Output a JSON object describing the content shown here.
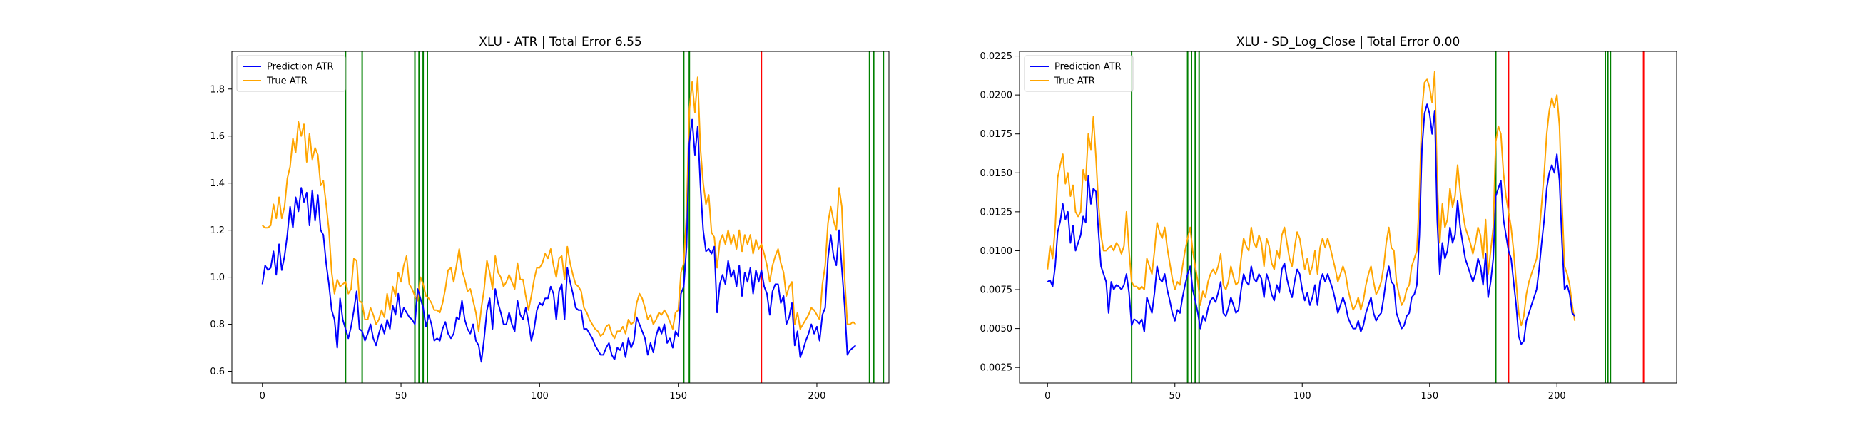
{
  "chart_data": [
    {
      "type": "line",
      "title": "XLU - ATR | Total Error 6.55",
      "xlabel": "",
      "ylabel": "",
      "xlim": [
        -11,
        226
      ],
      "ylim": [
        0.55,
        1.96
      ],
      "xticks": [
        0,
        50,
        100,
        150,
        200
      ],
      "yticks": [
        0.6,
        0.8,
        1.0,
        1.2,
        1.4,
        1.6,
        1.8
      ],
      "ytick_format": 1,
      "grid": false,
      "legend_position": "upper left",
      "series": [
        {
          "name": "Prediction ATR",
          "color": "#0000ff",
          "x_start": 0,
          "values": [
            0.97,
            1.05,
            1.03,
            1.04,
            1.11,
            1.01,
            1.14,
            1.03,
            1.09,
            1.18,
            1.3,
            1.21,
            1.34,
            1.28,
            1.38,
            1.32,
            1.36,
            1.22,
            1.37,
            1.24,
            1.35,
            1.2,
            1.18,
            1.06,
            0.97,
            0.86,
            0.82,
            0.7,
            0.91,
            0.82,
            0.78,
            0.74,
            0.79,
            0.86,
            0.94,
            0.78,
            0.77,
            0.73,
            0.76,
            0.8,
            0.74,
            0.71,
            0.76,
            0.8,
            0.76,
            0.82,
            0.78,
            0.88,
            0.84,
            0.93,
            0.83,
            0.87,
            0.85,
            0.83,
            0.82,
            0.8,
            0.95,
            0.91,
            0.87,
            0.79,
            0.84,
            0.8,
            0.73,
            0.74,
            0.73,
            0.78,
            0.81,
            0.76,
            0.74,
            0.76,
            0.83,
            0.82,
            0.9,
            0.82,
            0.78,
            0.76,
            0.8,
            0.73,
            0.71,
            0.64,
            0.74,
            0.86,
            0.91,
            0.78,
            0.95,
            0.89,
            0.85,
            0.8,
            0.8,
            0.85,
            0.8,
            0.77,
            0.9,
            0.84,
            0.82,
            0.87,
            0.81,
            0.73,
            0.78,
            0.86,
            0.89,
            0.88,
            0.91,
            0.91,
            0.96,
            0.93,
            0.82,
            0.94,
            0.97,
            0.82,
            1.04,
            0.98,
            0.93,
            0.87,
            0.86,
            0.86,
            0.78,
            0.78,
            0.76,
            0.74,
            0.71,
            0.69,
            0.67,
            0.67,
            0.7,
            0.72,
            0.67,
            0.65,
            0.7,
            0.69,
            0.72,
            0.66,
            0.74,
            0.7,
            0.73,
            0.83,
            0.8,
            0.77,
            0.74,
            0.67,
            0.72,
            0.68,
            0.75,
            0.79,
            0.76,
            0.8,
            0.72,
            0.74,
            0.7,
            0.77,
            0.75,
            0.93,
            0.96,
            1.13,
            1.57,
            1.67,
            1.52,
            1.64,
            1.39,
            1.2,
            1.11,
            1.12,
            1.1,
            1.13,
            0.85,
            0.97,
            1.01,
            0.97,
            1.07,
            1.0,
            1.03,
            0.96,
            1.05,
            0.92,
            1.02,
            0.98,
            1.04,
            0.93,
            1.03,
            0.98,
            1.03,
            0.96,
            0.93,
            0.84,
            0.94,
            0.97,
            0.97,
            0.89,
            0.92,
            0.8,
            0.83,
            0.89,
            0.71,
            0.77,
            0.66,
            0.69,
            0.73,
            0.76,
            0.8,
            0.76,
            0.79,
            0.73,
            0.84,
            0.87,
            1.08,
            1.18,
            1.09,
            1.05,
            1.2,
            1.04,
            0.88,
            0.67,
            0.69,
            0.7,
            0.71
          ]
        },
        {
          "name": "True ATR",
          "color": "#ffa500",
          "x_start": 0,
          "values": [
            1.22,
            1.21,
            1.21,
            1.22,
            1.31,
            1.25,
            1.34,
            1.25,
            1.3,
            1.42,
            1.47,
            1.59,
            1.53,
            1.66,
            1.6,
            1.65,
            1.49,
            1.61,
            1.5,
            1.55,
            1.52,
            1.39,
            1.41,
            1.31,
            1.2,
            1.02,
            0.93,
            0.99,
            0.96,
            0.97,
            0.98,
            0.93,
            0.95,
            1.08,
            1.07,
            0.9,
            0.89,
            0.82,
            0.82,
            0.87,
            0.84,
            0.8,
            0.82,
            0.86,
            0.83,
            0.93,
            0.86,
            0.96,
            0.92,
            1.02,
            0.98,
            1.05,
            1.09,
            0.97,
            0.95,
            0.92,
            0.9,
            1.0,
            0.97,
            0.92,
            0.91,
            0.89,
            0.86,
            0.86,
            0.85,
            0.89,
            0.95,
            1.03,
            1.04,
            0.98,
            1.05,
            1.12,
            1.03,
            0.99,
            0.94,
            0.95,
            0.9,
            0.85,
            0.77,
            0.87,
            0.95,
            1.07,
            1.02,
            0.95,
            1.09,
            1.02,
            1.0,
            0.96,
            0.98,
            1.01,
            0.98,
            0.95,
            1.06,
            0.99,
            0.99,
            0.92,
            0.86,
            0.92,
            0.99,
            1.04,
            1.04,
            1.06,
            1.1,
            1.08,
            1.12,
            1.05,
            1.0,
            1.08,
            1.09,
            0.99,
            1.13,
            1.06,
            1.01,
            0.97,
            0.96,
            0.94,
            0.87,
            0.85,
            0.82,
            0.8,
            0.78,
            0.77,
            0.75,
            0.76,
            0.79,
            0.8,
            0.76,
            0.74,
            0.77,
            0.77,
            0.79,
            0.76,
            0.82,
            0.8,
            0.81,
            0.89,
            0.93,
            0.91,
            0.87,
            0.82,
            0.84,
            0.8,
            0.82,
            0.85,
            0.84,
            0.86,
            0.84,
            0.81,
            0.78,
            0.85,
            0.86,
            1.02,
            1.06,
            1.27,
            1.71,
            1.83,
            1.7,
            1.85,
            1.55,
            1.4,
            1.31,
            1.35,
            1.19,
            1.17,
            1.04,
            1.15,
            1.18,
            1.14,
            1.2,
            1.14,
            1.18,
            1.12,
            1.2,
            1.11,
            1.18,
            1.14,
            1.18,
            1.1,
            1.16,
            1.12,
            1.14,
            1.1,
            1.05,
            0.98,
            1.05,
            1.09,
            1.12,
            1.06,
            1.02,
            0.92,
            0.96,
            0.98,
            0.8,
            0.85,
            0.78,
            0.8,
            0.82,
            0.84,
            0.87,
            0.86,
            0.84,
            0.82,
            0.97,
            1.05,
            1.23,
            1.3,
            1.24,
            1.2,
            1.38,
            1.3,
            1.0,
            0.8,
            0.8,
            0.81,
            0.8
          ]
        }
      ],
      "vlines": [
        {
          "x": 30,
          "color": "#008000"
        },
        {
          "x": 36,
          "color": "#008000"
        },
        {
          "x": 55,
          "color": "#008000"
        },
        {
          "x": 56.5,
          "color": "#008000"
        },
        {
          "x": 58,
          "color": "#008000"
        },
        {
          "x": 59.5,
          "color": "#008000"
        },
        {
          "x": 152,
          "color": "#008000"
        },
        {
          "x": 154,
          "color": "#008000"
        },
        {
          "x": 180,
          "color": "#ff0000"
        },
        {
          "x": 219,
          "color": "#008000"
        },
        {
          "x": 220.5,
          "color": "#008000"
        },
        {
          "x": 224,
          "color": "#008000"
        }
      ]
    },
    {
      "type": "line",
      "title": "XLU - SD_Log_Close | Total Error 0.00",
      "xlabel": "",
      "ylabel": "",
      "xlim": [
        -11,
        247
      ],
      "ylim": [
        0.0015,
        0.0228
      ],
      "xticks": [
        0,
        50,
        100,
        150,
        200
      ],
      "yticks": [
        0.0025,
        0.005,
        0.0075,
        0.01,
        0.0125,
        0.015,
        0.0175,
        0.02,
        0.0225
      ],
      "ytick_format": 4,
      "grid": false,
      "legend_position": "upper left",
      "series": [
        {
          "name": "Prediction ATR",
          "color": "#0000ff",
          "x_start": 0,
          "values": [
            0.008,
            0.0081,
            0.0077,
            0.009,
            0.0112,
            0.0119,
            0.013,
            0.012,
            0.0125,
            0.0105,
            0.0116,
            0.01,
            0.0105,
            0.011,
            0.0122,
            0.0118,
            0.0148,
            0.013,
            0.014,
            0.0138,
            0.0112,
            0.009,
            0.0085,
            0.008,
            0.006,
            0.008,
            0.0075,
            0.0078,
            0.0077,
            0.0075,
            0.0078,
            0.0085,
            0.0073,
            0.0052,
            0.0056,
            0.0055,
            0.0053,
            0.0056,
            0.0048,
            0.007,
            0.0065,
            0.006,
            0.0073,
            0.009,
            0.0082,
            0.008,
            0.0085,
            0.0075,
            0.0068,
            0.006,
            0.0055,
            0.0062,
            0.006,
            0.007,
            0.0078,
            0.0085,
            0.009,
            0.0075,
            0.0068,
            0.006,
            0.005,
            0.0058,
            0.0055,
            0.0063,
            0.0068,
            0.007,
            0.0067,
            0.0073,
            0.008,
            0.006,
            0.0058,
            0.0063,
            0.007,
            0.0065,
            0.006,
            0.0062,
            0.0075,
            0.0085,
            0.008,
            0.0078,
            0.009,
            0.0082,
            0.008,
            0.0085,
            0.0082,
            0.007,
            0.0085,
            0.008,
            0.0072,
            0.0068,
            0.0078,
            0.0073,
            0.0088,
            0.0092,
            0.0082,
            0.0075,
            0.007,
            0.008,
            0.0088,
            0.0085,
            0.0075,
            0.0068,
            0.0073,
            0.0065,
            0.007,
            0.0078,
            0.0065,
            0.008,
            0.0085,
            0.008,
            0.0085,
            0.008,
            0.0075,
            0.0068,
            0.006,
            0.0065,
            0.007,
            0.0065,
            0.0057,
            0.0053,
            0.005,
            0.005,
            0.0055,
            0.0048,
            0.0052,
            0.006,
            0.0065,
            0.007,
            0.006,
            0.0055,
            0.0058,
            0.006,
            0.007,
            0.0082,
            0.009,
            0.008,
            0.0078,
            0.006,
            0.0055,
            0.005,
            0.0052,
            0.0058,
            0.006,
            0.007,
            0.0072,
            0.0078,
            0.011,
            0.0165,
            0.0188,
            0.0194,
            0.0188,
            0.0175,
            0.019,
            0.012,
            0.0085,
            0.0105,
            0.0095,
            0.01,
            0.0115,
            0.0105,
            0.011,
            0.0132,
            0.0115,
            0.0105,
            0.0095,
            0.009,
            0.0085,
            0.008,
            0.0085,
            0.0095,
            0.009,
            0.0078,
            0.0098,
            0.007,
            0.008,
            0.0095,
            0.0135,
            0.014,
            0.0145,
            0.012,
            0.011,
            0.01,
            0.0095,
            0.008,
            0.0065,
            0.0045,
            0.004,
            0.0042,
            0.0055,
            0.006,
            0.0065,
            0.007,
            0.0075,
            0.0088,
            0.0105,
            0.012,
            0.014,
            0.015,
            0.0155,
            0.015,
            0.0162,
            0.0145,
            0.0105,
            0.0075,
            0.0078,
            0.0072,
            0.006,
            0.0058
          ]
        },
        {
          "name": "True ATR",
          "color": "#ffa500",
          "x_start": 0,
          "values": [
            0.0088,
            0.0103,
            0.0095,
            0.0115,
            0.0147,
            0.0155,
            0.0162,
            0.0143,
            0.015,
            0.0135,
            0.0142,
            0.0125,
            0.0122,
            0.0125,
            0.0152,
            0.0145,
            0.0175,
            0.0165,
            0.0186,
            0.016,
            0.013,
            0.011,
            0.01,
            0.01,
            0.0102,
            0.0103,
            0.01,
            0.0105,
            0.0103,
            0.0098,
            0.0103,
            0.0125,
            0.01,
            0.008,
            0.0077,
            0.0077,
            0.0075,
            0.0077,
            0.0075,
            0.0095,
            0.009,
            0.0085,
            0.01,
            0.0118,
            0.0112,
            0.0108,
            0.0115,
            0.0102,
            0.0092,
            0.0082,
            0.0075,
            0.008,
            0.0078,
            0.009,
            0.01,
            0.0108,
            0.0115,
            0.01,
            0.009,
            0.008,
            0.0065,
            0.0074,
            0.007,
            0.008,
            0.0085,
            0.0088,
            0.0085,
            0.009,
            0.0098,
            0.0078,
            0.0075,
            0.008,
            0.009,
            0.0083,
            0.0078,
            0.008,
            0.0095,
            0.0108,
            0.0103,
            0.01,
            0.0115,
            0.0105,
            0.0102,
            0.011,
            0.0105,
            0.009,
            0.0108,
            0.0103,
            0.0092,
            0.0088,
            0.01,
            0.0095,
            0.011,
            0.0115,
            0.0105,
            0.0095,
            0.009,
            0.0102,
            0.0112,
            0.0108,
            0.0098,
            0.0088,
            0.0095,
            0.0085,
            0.009,
            0.01,
            0.0085,
            0.0102,
            0.0108,
            0.0102,
            0.0108,
            0.0102,
            0.0095,
            0.0088,
            0.008,
            0.0085,
            0.009,
            0.0085,
            0.0075,
            0.0068,
            0.0062,
            0.0065,
            0.007,
            0.0062,
            0.0068,
            0.0078,
            0.0085,
            0.009,
            0.008,
            0.0072,
            0.0075,
            0.008,
            0.009,
            0.0105,
            0.0115,
            0.0102,
            0.01,
            0.008,
            0.0072,
            0.0065,
            0.0068,
            0.0075,
            0.0078,
            0.009,
            0.0095,
            0.01,
            0.0135,
            0.019,
            0.0208,
            0.021,
            0.0205,
            0.0195,
            0.0215,
            0.0145,
            0.0105,
            0.013,
            0.0115,
            0.012,
            0.014,
            0.0128,
            0.0135,
            0.0155,
            0.0138,
            0.0125,
            0.0115,
            0.011,
            0.0105,
            0.0098,
            0.0105,
            0.0115,
            0.011,
            0.0095,
            0.012,
            0.0085,
            0.01,
            0.0115,
            0.017,
            0.018,
            0.0175,
            0.015,
            0.0135,
            0.0125,
            0.0115,
            0.01,
            0.008,
            0.006,
            0.0052,
            0.0058,
            0.0072,
            0.008,
            0.0085,
            0.009,
            0.0095,
            0.011,
            0.013,
            0.015,
            0.0175,
            0.019,
            0.0198,
            0.0192,
            0.02,
            0.018,
            0.013,
            0.009,
            0.0085,
            0.0078,
            0.0065,
            0.0055
          ]
        }
      ],
      "vlines": [
        {
          "x": 33,
          "color": "#008000"
        },
        {
          "x": 55,
          "color": "#008000"
        },
        {
          "x": 56.5,
          "color": "#008000"
        },
        {
          "x": 58,
          "color": "#008000"
        },
        {
          "x": 59.5,
          "color": "#008000"
        },
        {
          "x": 176,
          "color": "#008000"
        },
        {
          "x": 181,
          "color": "#ff0000"
        },
        {
          "x": 219,
          "color": "#008000"
        },
        {
          "x": 220,
          "color": "#008000"
        },
        {
          "x": 221,
          "color": "#008000"
        },
        {
          "x": 234,
          "color": "#ff0000"
        }
      ]
    }
  ]
}
